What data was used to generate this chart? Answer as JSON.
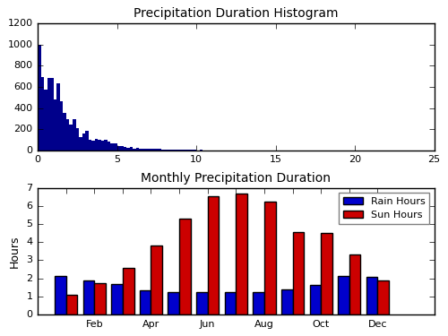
{
  "hist_title": "Precipitation Duration Histogram",
  "hist_xlim": [
    0,
    25
  ],
  "hist_ylim": [
    0,
    1200
  ],
  "hist_color": "#00008B",
  "hist_yticks": [
    0,
    200,
    400,
    600,
    800,
    1000,
    1200
  ],
  "hist_xticks": [
    0,
    5,
    10,
    15,
    20,
    25
  ],
  "bar_title": "Monthly Precipitation Duration",
  "bar_ylabel": "Hours",
  "bar_ylim": [
    0,
    7
  ],
  "bar_yticks": [
    0,
    1,
    2,
    3,
    4,
    5,
    6,
    7
  ],
  "rain_hours": [
    2.15,
    1.9,
    1.7,
    1.35,
    1.25,
    1.25,
    1.25,
    1.25,
    1.4,
    1.65,
    2.15,
    2.1
  ],
  "sun_hours": [
    1.1,
    1.75,
    2.6,
    3.8,
    5.3,
    6.55,
    6.7,
    6.25,
    4.55,
    4.5,
    3.3,
    1.9
  ],
  "rain_color": "#0000CC",
  "sun_color": "#CC0000",
  "bar_xtick_positions": [
    1,
    2,
    3,
    4,
    5,
    6,
    7,
    8,
    9,
    10,
    11,
    12
  ],
  "bar_xtick_labels": [
    "",
    "Feb",
    "",
    "Apr",
    "",
    "Jun",
    "",
    "Aug",
    "",
    "Oct",
    "",
    "Dec"
  ],
  "legend_labels": [
    "Rain Hours",
    "Sun Hours"
  ],
  "fig_facecolor": "#d8d8d8",
  "axes_facecolor": "#ffffff"
}
